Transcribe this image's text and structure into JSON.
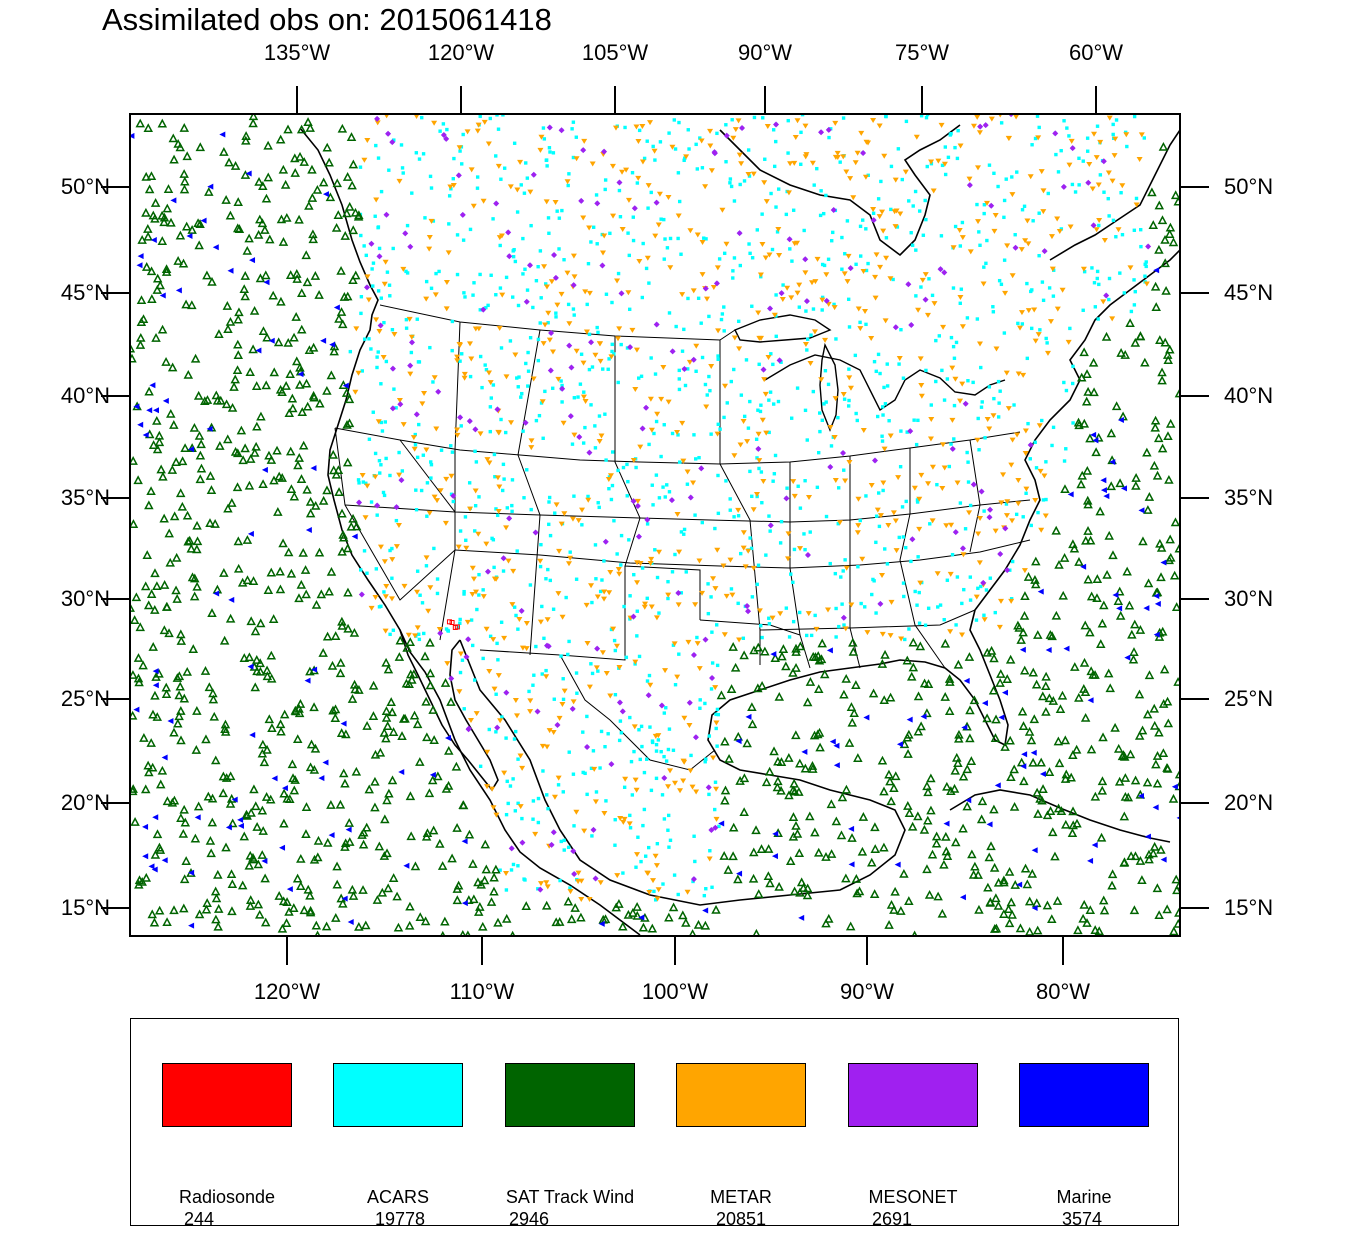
{
  "title": "Assimilated obs on: 2015061418",
  "top_axis": [
    "135°W",
    "120°W",
    "105°W",
    "90°W",
    "75°W",
    "60°W"
  ],
  "bottom_axis": [
    "120°W",
    "110°W",
    "100°W",
    "90°W",
    "80°W"
  ],
  "lat_axis": [
    "50°N",
    "45°N",
    "40°N",
    "35°N",
    "30°N",
    "25°N",
    "20°N",
    "15°N"
  ],
  "legend": [
    {
      "name": "Radiosonde",
      "count": "244",
      "color": "#ff0000",
      "marker": "square"
    },
    {
      "name": "ACARS",
      "count": "19778",
      "color": "#00ffff",
      "marker": "dot"
    },
    {
      "name": "SAT Track Wind",
      "count": "2946",
      "color": "#006400",
      "marker": "triangle-up"
    },
    {
      "name": "METAR",
      "count": "20851",
      "color": "#ffa500",
      "marker": "triangle-down"
    },
    {
      "name": "MESONET",
      "count": "2691",
      "color": "#a020f0",
      "marker": "diamond"
    },
    {
      "name": "Marine",
      "count": "3574",
      "color": "#0000ff",
      "marker": "triangle-left"
    }
  ]
}
